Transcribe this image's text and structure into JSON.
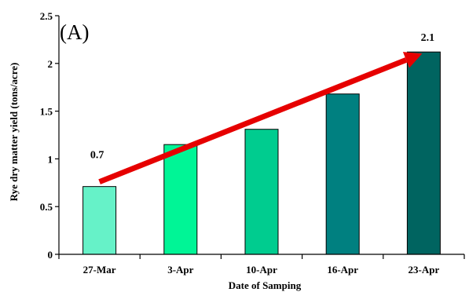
{
  "chart_data": {
    "type": "bar",
    "panel_label": "(A)",
    "title": "",
    "xlabel": "Date of Samping",
    "ylabel": "Rye dry matter yield (tons/acre)",
    "categories": [
      "27-Mar",
      "3-Apr",
      "10-Apr",
      "16-Apr",
      "23-Apr"
    ],
    "values": [
      0.71,
      1.15,
      1.31,
      1.68,
      2.12
    ],
    "bar_colors": [
      "#66f2c8",
      "#00f596",
      "#00cc8f",
      "#008080",
      "#006460"
    ],
    "ylim": [
      0,
      2.5
    ],
    "yticks": [
      "0",
      "0.5",
      "1",
      "1.5",
      "2",
      "2.5"
    ],
    "grid": false,
    "annotations": {
      "start_label": "0.7",
      "end_label": "2.1",
      "trend_arrow_color": "#e60000"
    }
  }
}
